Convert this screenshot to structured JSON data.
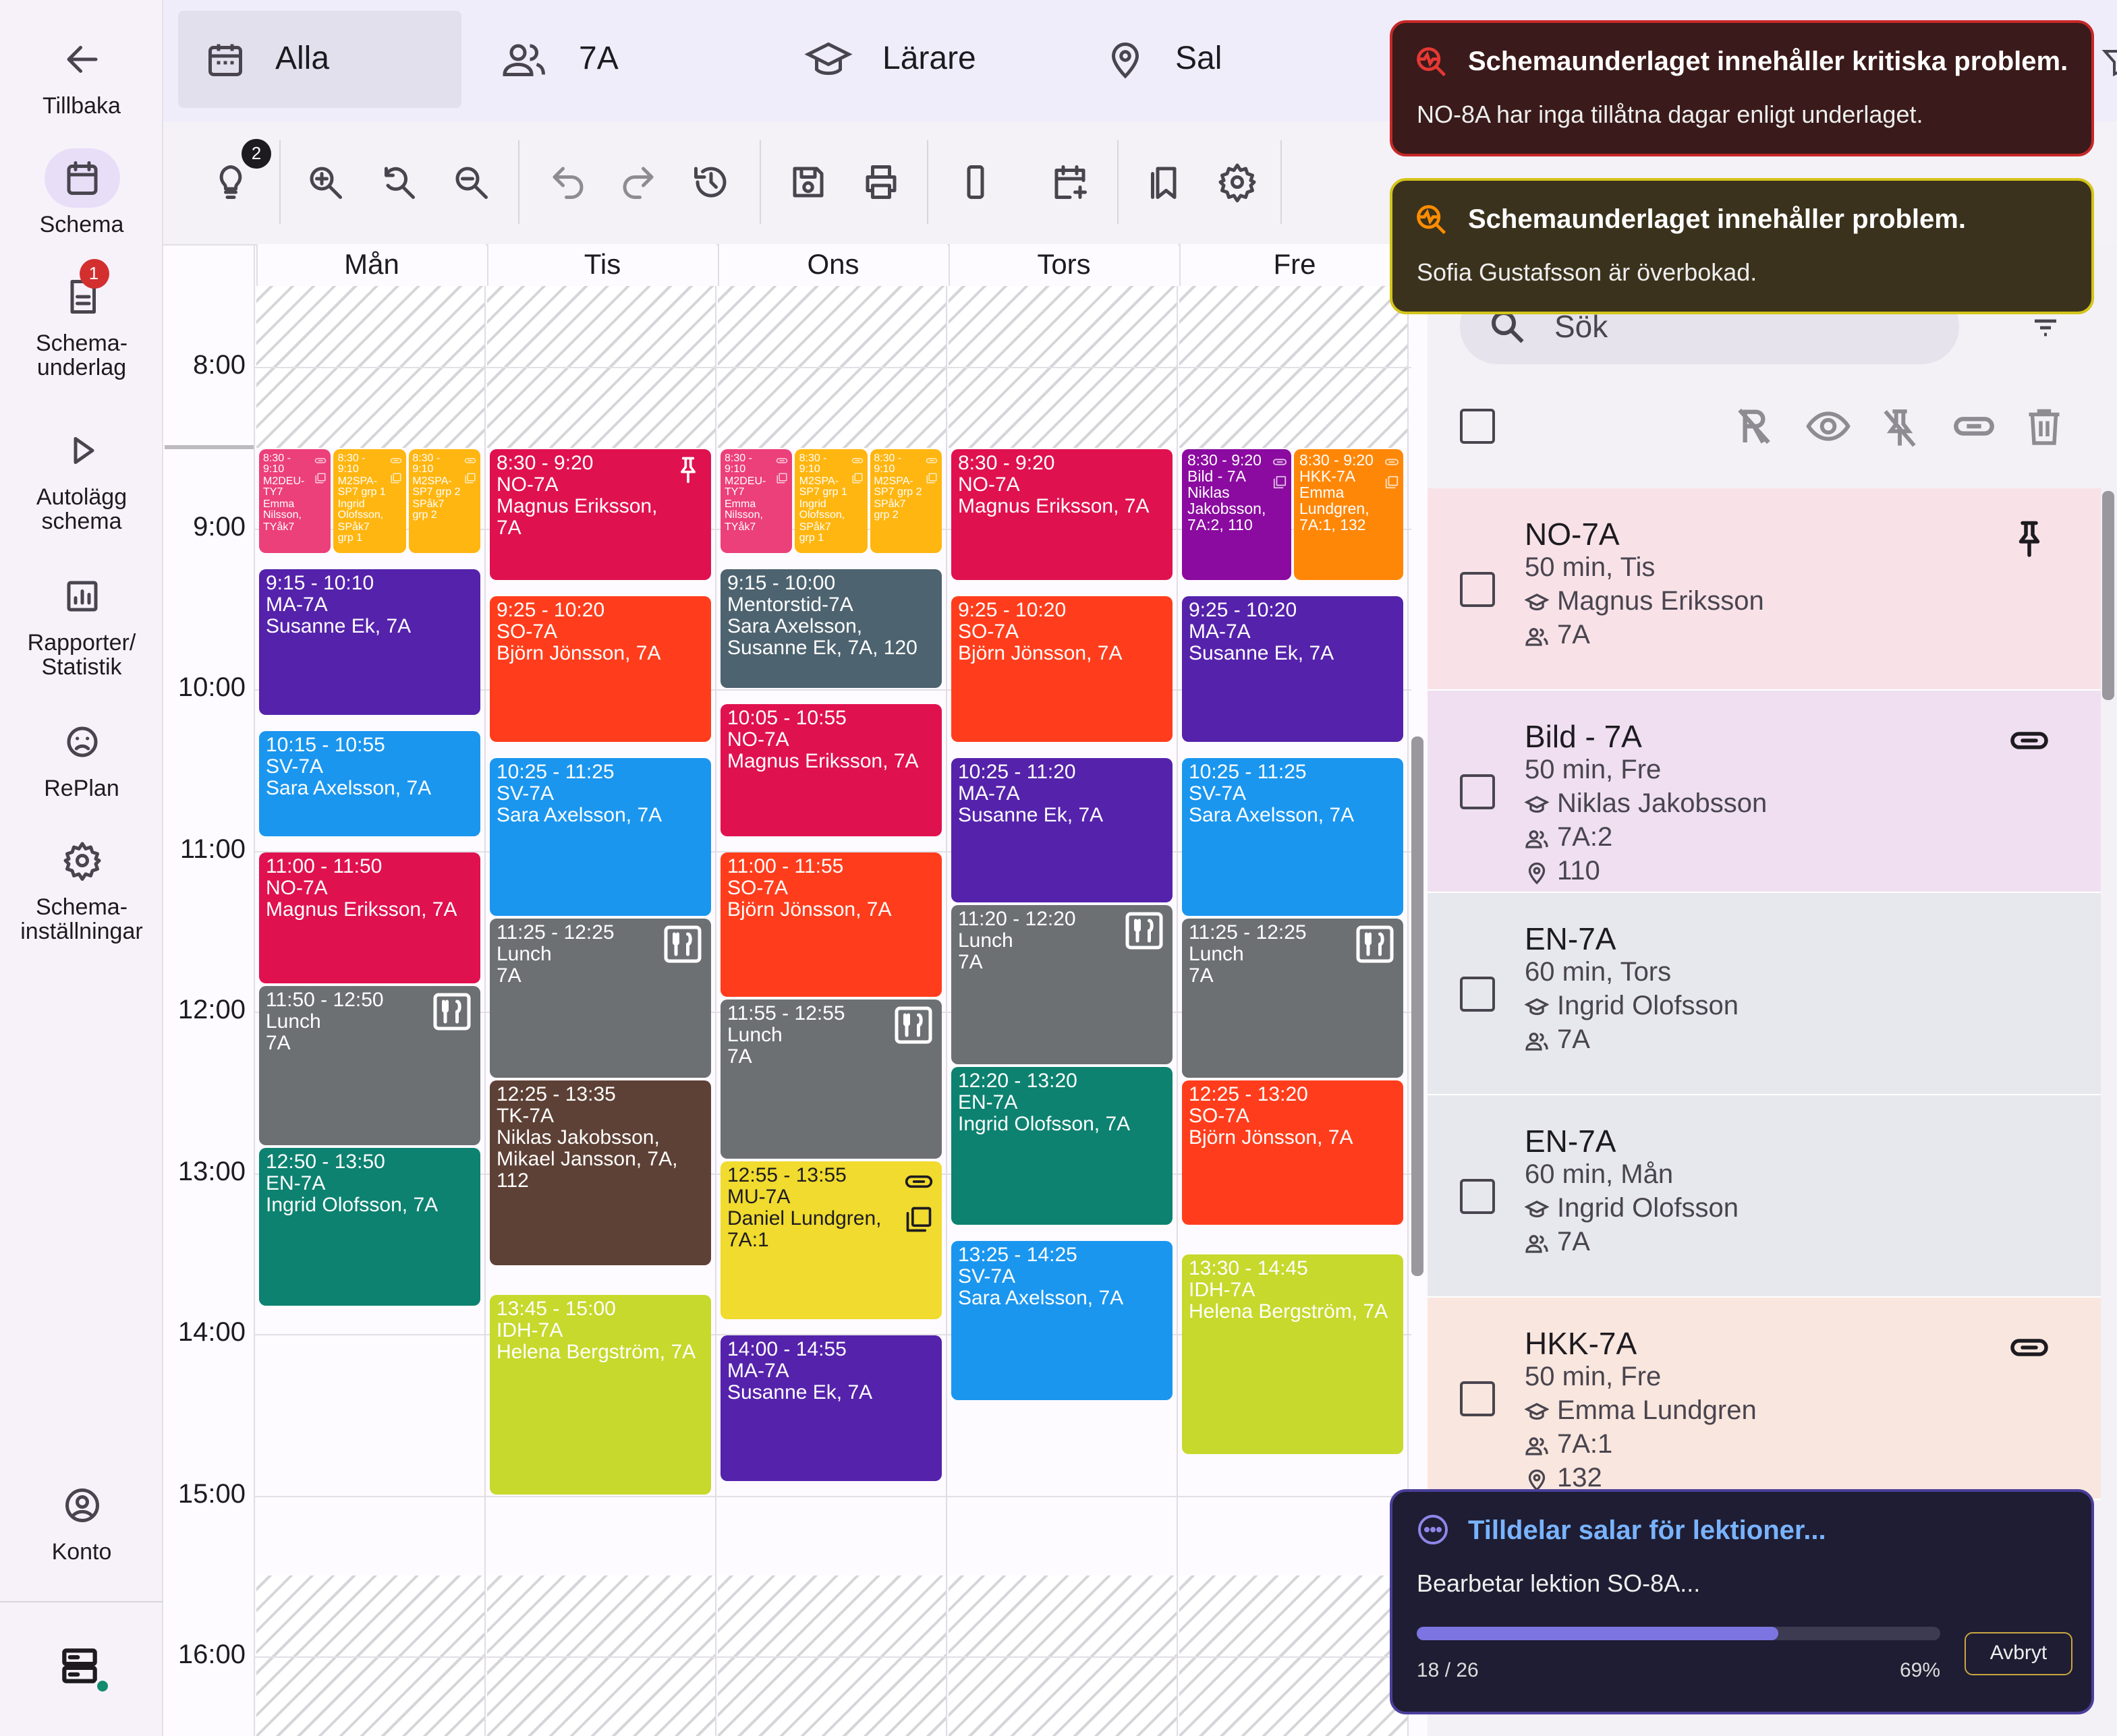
{
  "sidebar": {
    "items": [
      {
        "label": "Tillbaka",
        "icon": "arrow-left-icon"
      },
      {
        "label": "Schema",
        "icon": "calendar-icon",
        "selected": true
      },
      {
        "label": "Schema-\nunderlag",
        "icon": "document-icon",
        "badge": "1"
      },
      {
        "label": "Autolägg\nschema",
        "icon": "play-icon"
      },
      {
        "label": "Rapporter/\nStatistik",
        "icon": "chart-icon"
      },
      {
        "label": "RePlan",
        "icon": "replan-face-icon"
      },
      {
        "label": "Schema-\ninställningar",
        "icon": "gear-icon"
      },
      {
        "label": "Konto",
        "icon": "account-icon"
      }
    ],
    "bottom_icon": "server-status-icon"
  },
  "filters": [
    {
      "label": "Alla",
      "icon": "calendar-icon",
      "selected": true
    },
    {
      "label": "7A",
      "icon": "group-icon"
    },
    {
      "label": "Lärare",
      "icon": "teacher-hat-icon"
    },
    {
      "label": "Sal",
      "icon": "location-pin-icon"
    }
  ],
  "toolbar": {
    "hint_badge": "2",
    "icons": [
      "lightbulb-icon",
      "zoom-in-icon",
      "zoom-reset-icon",
      "zoom-out-icon",
      "undo-icon",
      "redo-icon",
      "history-icon",
      "save-icon",
      "print-icon",
      "phone-view-icon",
      "add-event-icon",
      "bookmarks-icon",
      "settings-icon"
    ]
  },
  "calendar": {
    "times": [
      "8:00",
      "9:00",
      "10:00",
      "11:00",
      "12:00",
      "13:00",
      "14:00",
      "15:00",
      "16:00"
    ],
    "days": [
      {
        "name": "Mån",
        "events": [
          {
            "time": "8:30 - 9:10",
            "title": "M2DEU-TY7",
            "details": "Emma Nilsson, TYåk7",
            "start": "8:30",
            "end": "9:10",
            "lane": 0,
            "lanes": 3,
            "color": "#ec407a",
            "icons": [
              "link",
              "copy"
            ]
          },
          {
            "time": "8:30 - 9:10",
            "title": "M2SPA-SP7 grp 1",
            "details": "Ingrid Olofsson, SPåk7 grp 1",
            "start": "8:30",
            "end": "9:10",
            "lane": 1,
            "lanes": 3,
            "color": "#ffb611",
            "icons": [
              "link",
              "copy"
            ]
          },
          {
            "time": "8:30 - 9:10",
            "title": "M2SPA-SP7 grp 2",
            "details": "SPåk7 grp 2",
            "start": "8:30",
            "end": "9:10",
            "lane": 2,
            "lanes": 3,
            "color": "#ffb611",
            "icons": [
              "link",
              "copy"
            ]
          },
          {
            "time": "9:15 - 10:10",
            "title": "MA-7A",
            "details": "Susanne Ek, 7A",
            "start": "9:15",
            "end": "10:10",
            "color": "#5522ab"
          },
          {
            "time": "10:15 - 10:55",
            "title": "SV-7A",
            "details": "Sara Axelsson, 7A",
            "start": "10:15",
            "end": "10:55",
            "color": "#1a96ef"
          },
          {
            "time": "11:00 - 11:50",
            "title": "NO-7A",
            "details": "Magnus Eriksson, 7A",
            "start": "11:00",
            "end": "11:50",
            "color": "#e0114f"
          },
          {
            "time": "11:50 - 12:50",
            "title": "Lunch",
            "details": "7A",
            "start": "11:50",
            "end": "12:50",
            "color": "#6c7073",
            "icons": [
              "lunch"
            ]
          },
          {
            "time": "12:50 - 13:50",
            "title": "EN-7A",
            "details": "Ingrid Olofsson, 7A",
            "start": "12:50",
            "end": "13:50",
            "color": "#0d8270"
          }
        ]
      },
      {
        "name": "Tis",
        "events": [
          {
            "time": "8:30 - 9:20",
            "title": "NO-7A",
            "details": "Magnus Eriksson, 7A",
            "start": "8:30",
            "end": "9:20",
            "color": "#e0114f",
            "icons": [
              "pin"
            ]
          },
          {
            "time": "9:25 - 10:20",
            "title": "SO-7A",
            "details": "Björn Jönsson, 7A",
            "start": "9:25",
            "end": "10:20",
            "color": "#ff3d1c"
          },
          {
            "time": "10:25 - 11:25",
            "title": "SV-7A",
            "details": "Sara Axelsson, 7A",
            "start": "10:25",
            "end": "11:25",
            "color": "#1a96ef"
          },
          {
            "time": "11:25 - 12:25",
            "title": "Lunch",
            "details": "7A",
            "start": "11:25",
            "end": "12:25",
            "color": "#6c7073",
            "icons": [
              "lunch"
            ]
          },
          {
            "time": "12:25 - 13:35",
            "title": "TK-7A",
            "details": "Niklas Jakobsson, Mikael Jansson, 7A, 112",
            "start": "12:25",
            "end": "13:35",
            "color": "#5e4136"
          },
          {
            "time": "13:45 - 15:00",
            "title": "IDH-7A",
            "details": "Helena Bergström, 7A",
            "start": "13:45",
            "end": "15:00",
            "color": "#c6d92c"
          }
        ]
      },
      {
        "name": "Ons",
        "events": [
          {
            "time": "8:30 - 9:10",
            "title": "M2DEU-TY7",
            "details": "Emma Nilsson, TYåk7",
            "start": "8:30",
            "end": "9:10",
            "lane": 0,
            "lanes": 3,
            "color": "#ec407a",
            "icons": [
              "link",
              "copy"
            ]
          },
          {
            "time": "8:30 - 9:10",
            "title": "M2SPA-SP7 grp 1",
            "details": "Ingrid Olofsson, SPåk7 grp 1",
            "start": "8:30",
            "end": "9:10",
            "lane": 1,
            "lanes": 3,
            "color": "#ffb611",
            "icons": [
              "link",
              "copy"
            ]
          },
          {
            "time": "8:30 - 9:10",
            "title": "M2SPA-SP7 grp 2",
            "details": "SPåk7 grp 2",
            "start": "8:30",
            "end": "9:10",
            "lane": 2,
            "lanes": 3,
            "color": "#ffb611",
            "icons": [
              "link",
              "copy"
            ]
          },
          {
            "time": "9:15 - 10:00",
            "title": "Mentorstid-7A",
            "details": "Sara Axelsson, Susanne Ek, 7A, 120",
            "start": "9:15",
            "end": "10:00",
            "color": "#4d636f"
          },
          {
            "time": "10:05 - 10:55",
            "title": "NO-7A",
            "details": "Magnus Eriksson, 7A",
            "start": "10:05",
            "end": "10:55",
            "color": "#e0114f"
          },
          {
            "time": "11:00 - 11:55",
            "title": "SO-7A",
            "details": "Björn Jönsson, 7A",
            "start": "11:00",
            "end": "11:55",
            "color": "#ff3d1c"
          },
          {
            "time": "11:55 - 12:55",
            "title": "Lunch",
            "details": "7A",
            "start": "11:55",
            "end": "12:55",
            "color": "#6c7073",
            "icons": [
              "lunch"
            ]
          },
          {
            "time": "12:55 - 13:55",
            "title": "MU-7A",
            "details": "Daniel Lundgren, 7A:1",
            "start": "12:55",
            "end": "13:55",
            "color": "#f0db2e",
            "dark": true,
            "icons": [
              "link",
              "copy"
            ]
          },
          {
            "time": "14:00 - 14:55",
            "title": "MA-7A",
            "details": "Susanne Ek, 7A",
            "start": "14:00",
            "end": "14:55",
            "color": "#5522ab"
          }
        ]
      },
      {
        "name": "Tors",
        "events": [
          {
            "time": "8:30 - 9:20",
            "title": "NO-7A",
            "details": "Magnus Eriksson, 7A",
            "start": "8:30",
            "end": "9:20",
            "color": "#e0114f"
          },
          {
            "time": "9:25 - 10:20",
            "title": "SO-7A",
            "details": "Björn Jönsson, 7A",
            "start": "9:25",
            "end": "10:20",
            "color": "#ff3d1c"
          },
          {
            "time": "10:25 - 11:20",
            "title": "MA-7A",
            "details": "Susanne Ek, 7A",
            "start": "10:25",
            "end": "11:20",
            "color": "#5522ab"
          },
          {
            "time": "11:20 - 12:20",
            "title": "Lunch",
            "details": "7A",
            "start": "11:20",
            "end": "12:20",
            "color": "#6c7073",
            "icons": [
              "lunch"
            ]
          },
          {
            "time": "12:20 - 13:20",
            "title": "EN-7A",
            "details": "Ingrid Olofsson, 7A",
            "start": "12:20",
            "end": "13:20",
            "color": "#0d8270"
          },
          {
            "time": "13:25 - 14:25",
            "title": "SV-7A",
            "details": "Sara Axelsson, 7A",
            "start": "13:25",
            "end": "14:25",
            "color": "#1a96ef"
          }
        ]
      },
      {
        "name": "Fre",
        "events": [
          {
            "time": "8:30 - 9:20",
            "title": "Bild - 7A",
            "details": "Niklas Jakobsson, 7A:2, 110",
            "start": "8:30",
            "end": "9:20",
            "lane": 0,
            "lanes": 2,
            "color": "#8b0aa0",
            "icons": [
              "link",
              "copy"
            ]
          },
          {
            "time": "8:30 - 9:20",
            "title": "HKK-7A",
            "details": "Emma Lundgren, 7A:1, 132",
            "start": "8:30",
            "end": "9:20",
            "lane": 1,
            "lanes": 2,
            "color": "#ff8708",
            "icons": [
              "link",
              "copy"
            ]
          },
          {
            "time": "9:25 - 10:20",
            "title": "MA-7A",
            "details": "Susanne Ek, 7A",
            "start": "9:25",
            "end": "10:20",
            "color": "#5522ab"
          },
          {
            "time": "10:25 - 11:25",
            "title": "SV-7A",
            "details": "Sara Axelsson, 7A",
            "start": "10:25",
            "end": "11:25",
            "color": "#1a96ef"
          },
          {
            "time": "11:25 - 12:25",
            "title": "Lunch",
            "details": "7A",
            "start": "11:25",
            "end": "12:25",
            "color": "#6c7073",
            "icons": [
              "lunch"
            ]
          },
          {
            "time": "12:25 - 13:20",
            "title": "SO-7A",
            "details": "Björn Jönsson, 7A",
            "start": "12:25",
            "end": "13:20",
            "color": "#ff3d1c"
          },
          {
            "time": "13:30 - 14:45",
            "title": "IDH-7A",
            "details": "Helena Bergström, 7A",
            "start": "13:30",
            "end": "14:45",
            "color": "#c6d92c"
          }
        ]
      }
    ]
  },
  "panel": {
    "search_placeholder": "Sök",
    "cards": [
      {
        "title": "NO-7A",
        "duration": "50 min, Tis",
        "teacher": "Magnus Eriksson",
        "group": "7A",
        "room": null,
        "bg": "#f8e2e8",
        "icon": "pin-icon"
      },
      {
        "title": "Bild - 7A",
        "duration": "50 min, Fre",
        "teacher": "Niklas Jakobsson",
        "group": "7A:2",
        "room": "110",
        "bg": "#efdff1",
        "icon": "link-icon"
      },
      {
        "title": "EN-7A",
        "duration": "60 min, Tors",
        "teacher": "Ingrid Olofsson",
        "group": "7A",
        "room": null,
        "bg": "#e7e8ed"
      },
      {
        "title": "EN-7A",
        "duration": "60 min, Mån",
        "teacher": "Ingrid Olofsson",
        "group": "7A",
        "room": null,
        "bg": "#e7e8ed"
      },
      {
        "title": "HKK-7A",
        "duration": "50 min, Fre",
        "teacher": "Emma Lundgren",
        "group": "7A:1",
        "room": "132",
        "bg": "#f9e6de",
        "icon": "link-icon"
      }
    ]
  },
  "toasts": {
    "critical": {
      "title": "Schemaunderlaget innehåller kritiska problem.",
      "message": "NO-8A har inga tillåtna dagar enligt underlaget.",
      "color": "#e53935"
    },
    "warning": {
      "title": "Schemaunderlaget innehåller problem.",
      "message": "Sofia Gustafsson är överbokad.",
      "color": "#fb8c00"
    },
    "progress": {
      "title": "Tilldelar salar för lektioner...",
      "message": "Bearbetar lektion SO-8A...",
      "count": "18 / 26",
      "percent_label": "69%",
      "percent": 69,
      "cancel": "Avbryt"
    }
  }
}
